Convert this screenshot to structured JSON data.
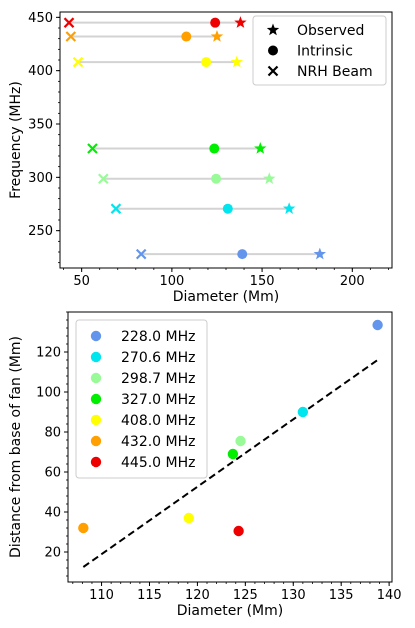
{
  "chart_data": [
    {
      "type": "scatter",
      "xlabel": "Diameter (Mm)",
      "ylabel": "Frequency (MHz)",
      "xlim": [
        38,
        222
      ],
      "ylim": [
        215,
        455
      ],
      "xticks": [
        50,
        100,
        150,
        200
      ],
      "yticks": [
        250,
        300,
        350,
        400,
        450
      ],
      "xtick_labels": [
        "50",
        "100",
        "150",
        "200"
      ],
      "ytick_labels": [
        "250",
        "300",
        "350",
        "400",
        "450"
      ],
      "legend_position": "top-right",
      "legend": [
        {
          "label": "Observed",
          "marker": "star"
        },
        {
          "label": "Intrinsic",
          "marker": "circle"
        },
        {
          "label": "NRH Beam",
          "marker": "x"
        }
      ],
      "connector_color": "#d3d3d3",
      "rows": [
        {
          "frequency": 228.0,
          "color": "#6495ed",
          "nrh_beam": 83,
          "intrinsic": 139,
          "observed": 182
        },
        {
          "frequency": 270.6,
          "color": "#00e5ee",
          "nrh_beam": 69,
          "intrinsic": 131,
          "observed": 165
        },
        {
          "frequency": 298.7,
          "color": "#98fb98",
          "nrh_beam": 62,
          "intrinsic": 124.5,
          "observed": 154
        },
        {
          "frequency": 327.0,
          "color": "#00ee00",
          "nrh_beam": 56,
          "intrinsic": 123.5,
          "observed": 149
        },
        {
          "frequency": 408.0,
          "color": "#ffff00",
          "nrh_beam": 48,
          "intrinsic": 119,
          "observed": 136
        },
        {
          "frequency": 432.0,
          "color": "#ff9f00",
          "nrh_beam": 44,
          "intrinsic": 108,
          "observed": 125
        },
        {
          "frequency": 445.0,
          "color": "#ee0000",
          "nrh_beam": 43,
          "intrinsic": 124,
          "observed": 138
        }
      ]
    },
    {
      "type": "scatter",
      "xlabel": "Diameter (Mm)",
      "ylabel": "Distance from base of fan (Mm)",
      "xlim": [
        106.5,
        140.3
      ],
      "ylim": [
        5,
        140
      ],
      "xticks": [
        110,
        115,
        120,
        125,
        130,
        135,
        140
      ],
      "yticks": [
        20,
        40,
        60,
        80,
        100,
        120
      ],
      "xtick_labels": [
        "110",
        "115",
        "120",
        "125",
        "130",
        "135",
        "140"
      ],
      "ytick_labels": [
        "20",
        "40",
        "60",
        "80",
        "100",
        "120"
      ],
      "legend_position": "top-left",
      "points": [
        {
          "label": "228.0 MHz",
          "color": "#6495ed",
          "x": 138.8,
          "y": 133.5
        },
        {
          "label": "270.6 MHz",
          "color": "#00e5ee",
          "x": 131.0,
          "y": 90.0
        },
        {
          "label": "298.7 MHz",
          "color": "#98fb98",
          "x": 124.5,
          "y": 75.5
        },
        {
          "label": "327.0 MHz",
          "color": "#00ee00",
          "x": 123.7,
          "y": 69.0
        },
        {
          "label": "408.0 MHz",
          "color": "#ffff00",
          "x": 119.1,
          "y": 37.0
        },
        {
          "label": "432.0 MHz",
          "color": "#ff9f00",
          "x": 108.1,
          "y": 32.0
        },
        {
          "label": "445.0 MHz",
          "color": "#ee0000",
          "x": 124.3,
          "y": 30.5
        }
      ],
      "fit_line": {
        "style": "dashed",
        "color": "#000000",
        "x": [
          108.1,
          138.8
        ],
        "y": [
          12.5,
          116.0
        ]
      }
    }
  ]
}
